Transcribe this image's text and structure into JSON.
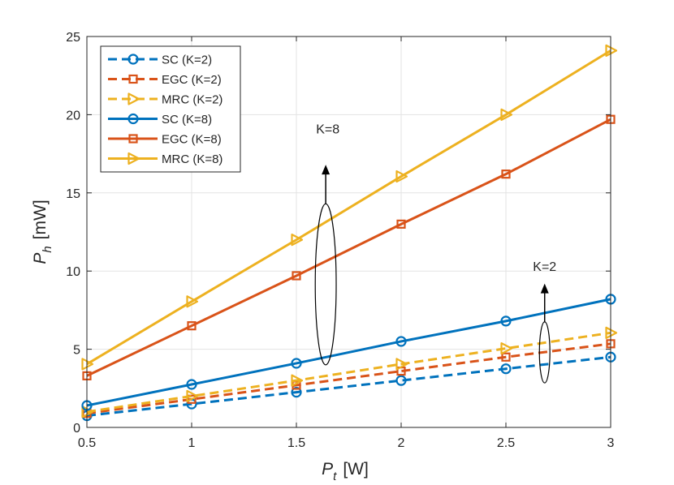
{
  "chart_data": {
    "type": "line",
    "title": "",
    "xlabel": {
      "main": "P",
      "sub": "t",
      "unit": "[W]"
    },
    "ylabel": {
      "main": "P",
      "sub": "h",
      "unit": "[mW]"
    },
    "xlim": [
      0.5,
      3
    ],
    "ylim": [
      0,
      25
    ],
    "xticks": [
      0.5,
      1,
      1.5,
      2,
      2.5,
      3
    ],
    "xtick_labels": [
      "0.5",
      "1",
      "1.5",
      "2",
      "2.5",
      "3"
    ],
    "yticks": [
      0,
      5,
      10,
      15,
      20,
      25
    ],
    "ytick_labels": [
      "0",
      "5",
      "10",
      "15",
      "20",
      "25"
    ],
    "grid": true,
    "legend_position": "top-left",
    "x": [
      0.5,
      1,
      1.5,
      2,
      2.5,
      3
    ],
    "series": [
      {
        "name": "SC (K=2)",
        "color": "#0072BD",
        "style": "dashed",
        "marker": "circle",
        "values": [
          0.75,
          1.5,
          2.25,
          3.0,
          3.75,
          4.5
        ]
      },
      {
        "name": "EGC (K=2)",
        "color": "#D95319",
        "style": "dashed",
        "marker": "square",
        "values": [
          0.9,
          1.8,
          2.7,
          3.6,
          4.5,
          5.35
        ]
      },
      {
        "name": "MRC (K=2)",
        "color": "#EDB120",
        "style": "dashed",
        "marker": "triangle",
        "values": [
          1.0,
          2.0,
          3.0,
          4.05,
          5.05,
          6.05
        ]
      },
      {
        "name": "SC (K=8)",
        "color": "#0072BD",
        "style": "solid",
        "marker": "circle",
        "values": [
          1.4,
          2.75,
          4.1,
          5.5,
          6.8,
          8.2
        ]
      },
      {
        "name": "EGC (K=8)",
        "color": "#D95319",
        "style": "solid",
        "marker": "square",
        "values": [
          3.3,
          6.5,
          9.7,
          13.0,
          16.2,
          19.7
        ]
      },
      {
        "name": "MRC (K=8)",
        "color": "#EDB120",
        "style": "solid",
        "marker": "triangle",
        "values": [
          4.05,
          8.05,
          12.0,
          16.05,
          20.0,
          24.1
        ]
      }
    ],
    "annotations": [
      {
        "text": "K=8",
        "ellipse_center": [
          1.64,
          9.15
        ],
        "ellipse_rx": 0.05,
        "ellipse_ry": 5.15,
        "arrow_from": [
          1.64,
          14.3
        ],
        "arrow_to": [
          1.64,
          16.8
        ],
        "label_at": [
          1.65,
          18.8
        ]
      },
      {
        "text": "K=2",
        "ellipse_center": [
          2.685,
          4.8
        ],
        "ellipse_rx": 0.025,
        "ellipse_ry": 1.95,
        "arrow_from": [
          2.685,
          6.75
        ],
        "arrow_to": [
          2.685,
          9.2
        ],
        "label_at": [
          2.685,
          10.0
        ]
      }
    ]
  }
}
